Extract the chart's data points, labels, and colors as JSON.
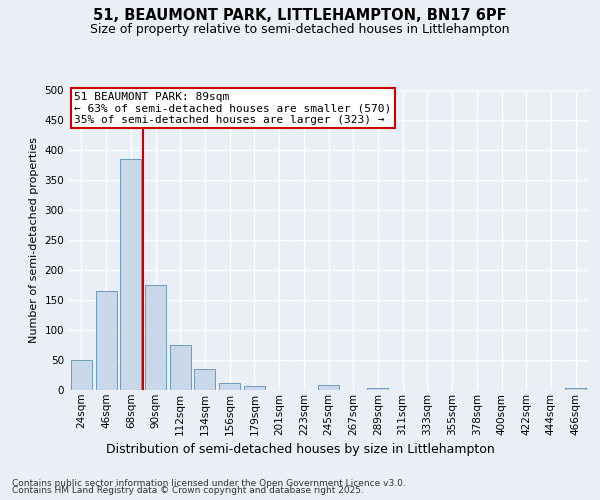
{
  "title1": "51, BEAUMONT PARK, LITTLEHAMPTON, BN17 6PF",
  "title2": "Size of property relative to semi-detached houses in Littlehampton",
  "xlabel": "Distribution of semi-detached houses by size in Littlehampton",
  "ylabel": "Number of semi-detached properties",
  "categories": [
    "24sqm",
    "46sqm",
    "68sqm",
    "90sqm",
    "112sqm",
    "134sqm",
    "156sqm",
    "179sqm",
    "201sqm",
    "223sqm",
    "245sqm",
    "267sqm",
    "289sqm",
    "311sqm",
    "333sqm",
    "355sqm",
    "378sqm",
    "400sqm",
    "422sqm",
    "444sqm",
    "466sqm"
  ],
  "values": [
    50,
    165,
    385,
    175,
    75,
    35,
    12,
    7,
    0,
    0,
    8,
    0,
    3,
    0,
    0,
    0,
    0,
    0,
    0,
    0,
    3
  ],
  "bar_color": "#c8d8e8",
  "bar_edge_color": "#5b8db8",
  "background_color": "#eaeff5",
  "grid_color": "#ffffff",
  "property_line_color": "#cc0000",
  "annotation_text": "51 BEAUMONT PARK: 89sqm\n← 63% of semi-detached houses are smaller (570)\n35% of semi-detached houses are larger (323) →",
  "annotation_box_color": "#ffffff",
  "annotation_box_edge_color": "#cc0000",
  "ylim": [
    0,
    500
  ],
  "yticks": [
    0,
    50,
    100,
    150,
    200,
    250,
    300,
    350,
    400,
    450,
    500
  ],
  "footer_line1": "Contains HM Land Registry data © Crown copyright and database right 2025.",
  "footer_line2": "Contains public sector information licensed under the Open Government Licence v3.0.",
  "title1_fontsize": 10.5,
  "title2_fontsize": 9,
  "xlabel_fontsize": 9,
  "ylabel_fontsize": 8,
  "tick_fontsize": 7.5,
  "annotation_fontsize": 8,
  "footer_fontsize": 6.5
}
